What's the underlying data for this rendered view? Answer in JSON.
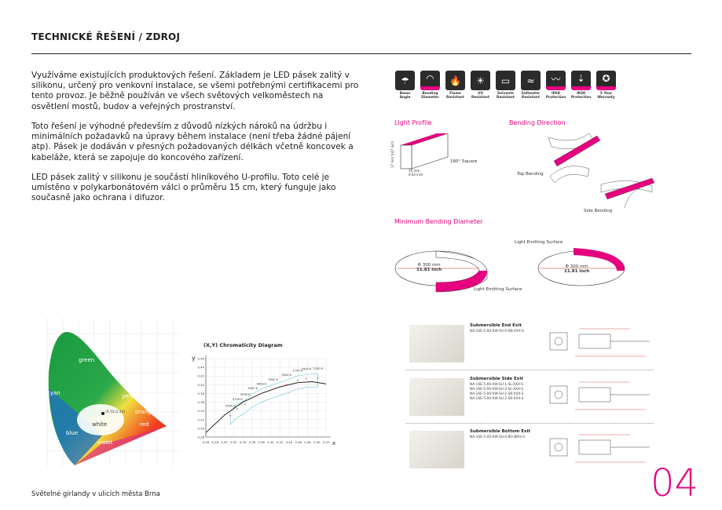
{
  "title": "TECHNICKÉ ŘEŠENÍ / ZDROJ",
  "paragraphs": [
    "Využíváme existujících produktových řešení. Základem je LED pásek zalitý v silikonu, určený pro venkovní instalace, se všemi potřebnými certifikacemi pro tento provoz. Je běžně používán ve všech světových velkoměstech na osvětlení mostů, budov a veřejných prostranství.",
    "Toto řešení je výhodné především z důvodů nízkých nároků na údržbu i minimálních požadavků na úpravy během instalace (není třeba žádné pájení atp). Pásek je dodáván v přesných požadovaných délkách včetně koncovek a kabeláže, která se zapojuje do koncového zařízení.",
    "LED pásek zalitý v silikonu je součástí hliníkového U-profilu. Toto celé je umístěno v polykarbonátovém válci o průměru 15 cm, který funguje jako současně jako ochrana i difuzor."
  ],
  "icons": [
    {
      "label": "Beam Angle",
      "icon": "beam-icon",
      "glyph": "☂"
    },
    {
      "label": "Bending Diameter",
      "icon": "bending-icon",
      "glyph": "◠"
    },
    {
      "label": "Flame Resistant",
      "icon": "flame-icon",
      "glyph": "🔥"
    },
    {
      "label": "UV Resistant",
      "icon": "sun-icon",
      "glyph": "☀"
    },
    {
      "label": "Solvents Resistant",
      "icon": "solvent-icon",
      "glyph": "▭"
    },
    {
      "label": "Saltwater Resistant",
      "icon": "saltwater-icon",
      "glyph": "≈"
    },
    {
      "label": "IP68 Protection",
      "icon": "water-icon",
      "glyph": "〰"
    },
    {
      "label": "IK08 Protection",
      "icon": "impact-icon",
      "glyph": "⇣"
    },
    {
      "label": "5 Year Warranty",
      "icon": "warranty-icon",
      "glyph": "✪"
    }
  ],
  "profile": {
    "heading": "Light Profile",
    "height": "17 mm 0.67 inch",
    "width": "16 mm 0.63 inch",
    "shape": "160° Square"
  },
  "bending": {
    "heading": "Bending Direction",
    "top": "Top Bending",
    "side": "Side Bending"
  },
  "min_bend": {
    "heading": "Minimum Bending Diameter",
    "diameter": "Φ 300 mm",
    "inch": "11.81 inch",
    "surface": "Light Emitting Surface"
  },
  "cie": {
    "labels": [
      "green",
      "cyan",
      "yellow",
      "orange",
      "white",
      "red",
      "blue",
      "violet"
    ],
    "point": "(0.33,0.33)"
  },
  "chart_data": {
    "type": "line",
    "title": "(X,Y) Chromaticity   Diagram",
    "xlabel": "x",
    "ylabel": "y",
    "xticks": [
      "0.26",
      "0.28",
      "0.30",
      "0.32",
      "0.34",
      "0.36",
      "0.38",
      "0.40",
      "0.42",
      "0.44",
      "0.46",
      "0.48",
      "0.50",
      "0.52"
    ],
    "yticks": [
      "0.28",
      "0.30",
      "0.32",
      "0.34",
      "0.36",
      "0.38",
      "0.40",
      "0.42",
      "0.44",
      "0.46"
    ],
    "xlim": [
      0.26,
      0.52
    ],
    "ylim": [
      0.28,
      0.46
    ],
    "cct_labels": [
      "6500 K",
      "5700 K",
      "5000 K",
      "4500 K",
      "4000 K",
      "3500 K",
      "3000 K",
      "2700 K",
      "2500 K",
      "2200 K"
    ],
    "cct_x": [
      0.313,
      0.328,
      0.345,
      0.361,
      0.38,
      0.405,
      0.434,
      0.458,
      0.477,
      0.502
    ],
    "cct_y": [
      0.329,
      0.345,
      0.355,
      0.37,
      0.38,
      0.39,
      0.4,
      0.41,
      0.414,
      0.415
    ],
    "locus": [
      [
        0.26,
        0.29
      ],
      [
        0.3,
        0.33
      ],
      [
        0.34,
        0.36
      ],
      [
        0.38,
        0.38
      ],
      [
        0.42,
        0.395
      ],
      [
        0.46,
        0.405
      ],
      [
        0.49,
        0.407
      ],
      [
        0.52,
        0.402
      ]
    ]
  },
  "products": [
    {
      "title": "Submersible End Exit",
      "codes": [
        "NA-16E-5-00-XW-SU-0-EN-XXX-S"
      ]
    },
    {
      "title": "Submersible Side Exit",
      "codes": [
        "NA-16E-5-00-XW-SU-1-SL-XXX-S",
        "NA-16E-5-00-XW-SU-2-SL-XXX-S",
        "NA-16E-5-00-XW-SU-1-SR-XXX-S",
        "NA-16E-5-00-XW-SU-2-SR-XXX-S"
      ]
    },
    {
      "title": "Submersible Bottom Exit",
      "codes": [
        "NA-16E-5-00-XW-SU-0-BO-BM3-S"
      ]
    }
  ],
  "footer": "Světelné girlandy v ulicích města Brna",
  "page_number": "04",
  "accent": "#e4007f"
}
